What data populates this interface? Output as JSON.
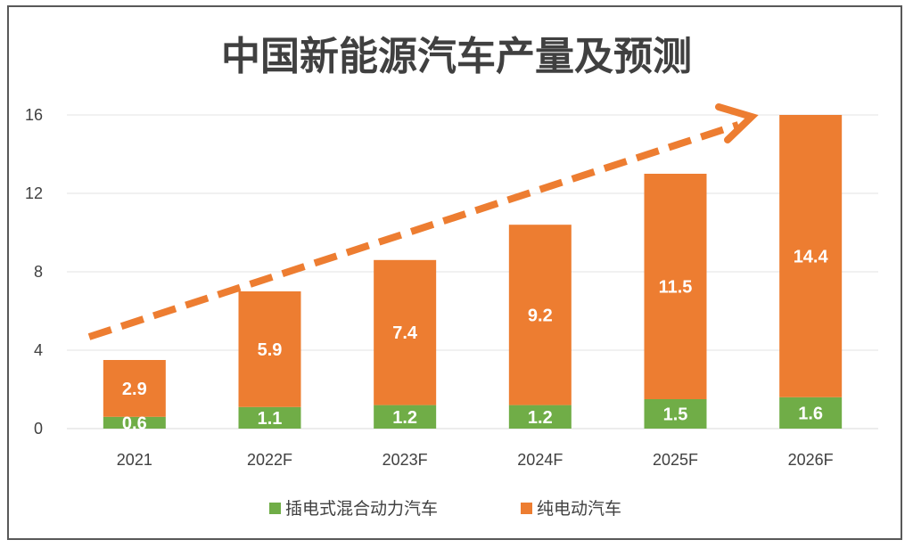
{
  "chart_data": {
    "type": "bar",
    "stacked": true,
    "title": "中国新能源汽车产量及预测",
    "categories": [
      "2021",
      "2022F",
      "2023F",
      "2024F",
      "2025F",
      "2026F"
    ],
    "series": [
      {
        "name": "插电式混合动力汽车",
        "color": "#70ad47",
        "values": [
          0.6,
          1.1,
          1.2,
          1.2,
          1.5,
          1.6
        ]
      },
      {
        "name": "纯电动汽车",
        "color": "#ed7d31",
        "values": [
          2.9,
          5.9,
          7.4,
          9.2,
          11.5,
          14.4
        ]
      }
    ],
    "ylim": [
      0,
      16
    ],
    "yticks": [
      "0",
      "4",
      "8",
      "12",
      "16"
    ],
    "grid": true,
    "legend": "bottom",
    "trend_arrow": {
      "color": "#ed7d31",
      "style": "dashed",
      "direction": "up-right"
    }
  }
}
